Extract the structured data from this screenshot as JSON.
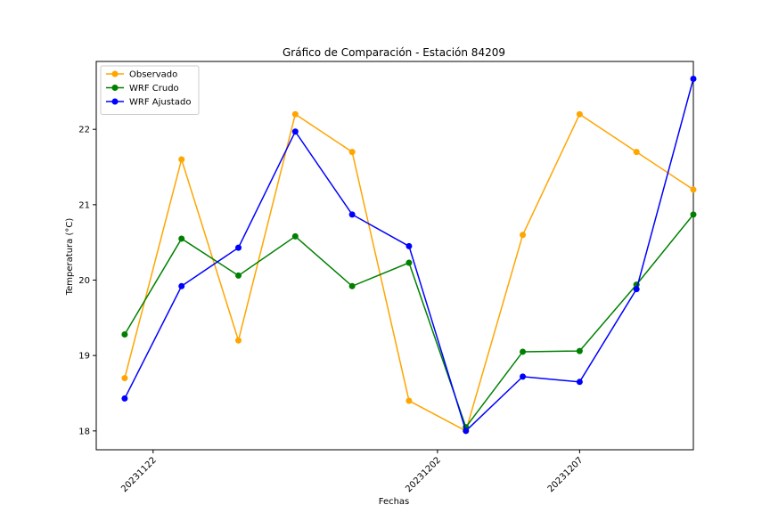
{
  "chart_data": {
    "type": "line",
    "title": "Gráfico de Comparación - Estación 84209",
    "xlabel": "Fechas",
    "ylabel": "Temperatura (°C)",
    "x": [
      "2023-11-21",
      "2023-11-23",
      "2023-11-25",
      "2023-11-27",
      "2023-11-29",
      "2023-12-01",
      "2023-12-03",
      "2023-12-05",
      "2023-12-07",
      "2023-12-09",
      "2023-12-11"
    ],
    "xlim": [
      "2023-11-20",
      "2023-12-11"
    ],
    "xticks": [
      {
        "value": "2023-11-22",
        "label": "20231122"
      },
      {
        "value": "2023-12-02",
        "label": "20231202"
      },
      {
        "value": "2023-12-07",
        "label": "20231207"
      }
    ],
    "ylim": [
      17.75,
      22.9
    ],
    "yticks": [
      18,
      19,
      20,
      21,
      22
    ],
    "grid": false,
    "legend": "top-left",
    "series": [
      {
        "name": "Observado",
        "color": "#ffa500",
        "values": [
          18.7,
          21.6,
          19.2,
          22.2,
          21.7,
          18.4,
          18.0,
          20.6,
          22.2,
          21.7,
          21.2
        ]
      },
      {
        "name": "WRF Crudo",
        "color": "#008000",
        "values": [
          19.28,
          20.55,
          20.06,
          20.58,
          19.92,
          20.23,
          18.05,
          19.05,
          19.06,
          19.94,
          20.87
        ]
      },
      {
        "name": "WRF Ajustado",
        "color": "#0000ff",
        "values": [
          18.43,
          19.92,
          20.43,
          21.97,
          20.87,
          20.45,
          18.0,
          18.72,
          18.65,
          19.88,
          22.67
        ]
      }
    ]
  }
}
